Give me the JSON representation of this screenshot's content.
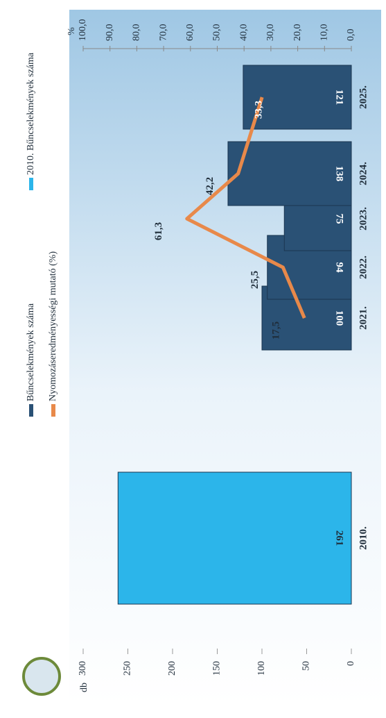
{
  "chart_data": {
    "type": "bar",
    "categories": [
      "2010.",
      "2021.",
      "2022.",
      "2023.",
      "2024.",
      "2025."
    ],
    "series": [
      {
        "name": "2010. Bűncselekmények száma",
        "type": "bar",
        "color": "#2cb5ea",
        "values": [
          261,
          null,
          null,
          null,
          null,
          null
        ]
      },
      {
        "name": "Bűncselekmények száma",
        "type": "bar",
        "color": "#2a5175",
        "values": [
          null,
          100,
          94,
          75,
          138,
          121
        ]
      },
      {
        "name": "Nyomozáseredményességi mutató (%)",
        "type": "line",
        "axis": "y2",
        "color": "#e8894a",
        "values": [
          null,
          17.5,
          25.5,
          61.3,
          42.2,
          33.3
        ],
        "value_labels": [
          null,
          "17,5",
          "25,5",
          "61,3",
          "42,2",
          "33,3"
        ]
      }
    ],
    "ylabel": "db",
    "y2label": "%",
    "ylim": [
      0,
      300
    ],
    "yticks": [
      0,
      50,
      100,
      150,
      200,
      250,
      300
    ],
    "y2lim": [
      0,
      100
    ],
    "y2ticks": [
      {
        "value": 0,
        "label": "0,0"
      },
      {
        "value": 10,
        "label": "10,0"
      },
      {
        "value": 20,
        "label": "20,0"
      },
      {
        "value": 30,
        "label": "30,0"
      },
      {
        "value": 40,
        "label": "40,0"
      },
      {
        "value": 50,
        "label": "50,0"
      },
      {
        "value": 60,
        "label": "60,0"
      },
      {
        "value": 70,
        "label": "70,0"
      },
      {
        "value": 80,
        "label": "80,0"
      },
      {
        "value": 90,
        "label": "90,0"
      },
      {
        "value": 100,
        "label": "100,0"
      }
    ]
  }
}
